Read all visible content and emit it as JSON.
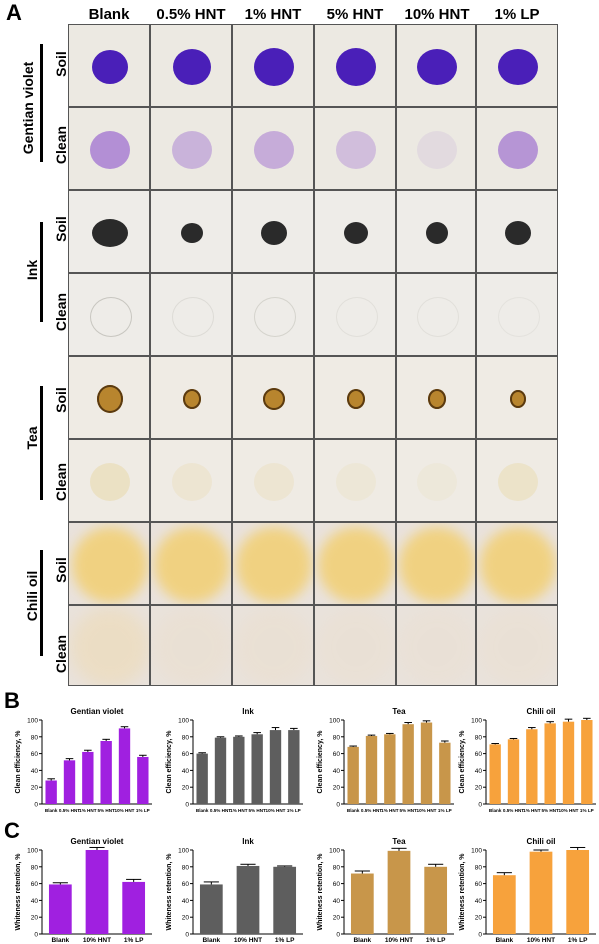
{
  "panel_a": {
    "letter": "A",
    "columns": [
      "Blank",
      "0.5% HNT",
      "1% HNT",
      "5% HNT",
      "10% HNT",
      "1% LP"
    ],
    "groups": [
      {
        "label": "Gentian violet",
        "rows": [
          "Soil",
          "Clean"
        ],
        "soil_color": "#4a1fb8",
        "clean_color": "#a070d0",
        "bg": "#ece9e2",
        "clean_opacity": [
          0.75,
          0.45,
          0.5,
          0.35,
          0.12,
          0.7
        ]
      },
      {
        "label": "Ink",
        "rows": [
          "Soil",
          "Clean"
        ],
        "soil_color": "#2a2a2a",
        "clean_color": "#9a9a90",
        "bg": "#eeece8",
        "clean_opacity": [
          0.45,
          0.2,
          0.3,
          0.15,
          0.15,
          0.12
        ]
      },
      {
        "label": "Tea",
        "rows": [
          "Soil",
          "Clean"
        ],
        "soil_color": "#b8852e",
        "clean_color": "#e6cf8a",
        "bg": "#efebe4",
        "clean_opacity": [
          0.35,
          0.2,
          0.2,
          0.15,
          0.1,
          0.3
        ]
      },
      {
        "label": "Chili oil",
        "rows": [
          "Soil",
          "Clean"
        ],
        "soil_color": "#f2cf72",
        "clean_color": "#efd8a8",
        "bg": "#e9e2dc",
        "clean_opacity": [
          0.45,
          0.15,
          0.15,
          0.12,
          0.1,
          0.12
        ]
      }
    ]
  },
  "panel_b": {
    "letter": "B"
  },
  "panel_c": {
    "letter": "C"
  },
  "chart_data": [
    {
      "panel": "B",
      "type": "bar",
      "title": "Gentian violet",
      "categories": [
        "Blank",
        "0.5% HNT",
        "1% HNT",
        "5% HNT",
        "10% HNT",
        "1% LP"
      ],
      "values": [
        28,
        52,
        62,
        75,
        90,
        56
      ],
      "errors": [
        2,
        2,
        2,
        2,
        2,
        2
      ],
      "ylabel": "Clean efficiency, %",
      "ylim": [
        0,
        100
      ],
      "yticks": [
        0,
        20,
        40,
        60,
        80,
        100
      ],
      "color": "#a020e0"
    },
    {
      "panel": "B",
      "type": "bar",
      "title": "Ink",
      "categories": [
        "Blank",
        "0.5% HNT",
        "1% HNT",
        "5% HNT",
        "10% HNT",
        "1% LP"
      ],
      "values": [
        60,
        79,
        80,
        83,
        88,
        88
      ],
      "errors": [
        1,
        1,
        1,
        2,
        3,
        2
      ],
      "ylabel": "Clean efficiency, %",
      "ylim": [
        0,
        100
      ],
      "yticks": [
        0,
        20,
        40,
        60,
        80,
        100
      ],
      "color": "#5e5e5e"
    },
    {
      "panel": "B",
      "type": "bar",
      "title": "Tea",
      "categories": [
        "Blank",
        "0.5% HNT",
        "1% HNT",
        "5% HNT",
        "10% HNT",
        "1% LP"
      ],
      "values": [
        68,
        81,
        83,
        95,
        97,
        73
      ],
      "errors": [
        1,
        1,
        1,
        2,
        2,
        2
      ],
      "ylabel": "Clean efficiency, %",
      "ylim": [
        0,
        100
      ],
      "yticks": [
        0,
        20,
        40,
        60,
        80,
        100
      ],
      "color": "#c8964a"
    },
    {
      "panel": "B",
      "type": "bar",
      "title": "Chili oil",
      "categories": [
        "Blank",
        "0.5% HNT",
        "1% HNT",
        "5% HNT",
        "10% HNT",
        "1% LP"
      ],
      "values": [
        71,
        77,
        89,
        96,
        98,
        100
      ],
      "errors": [
        1,
        1,
        2,
        2,
        3,
        2
      ],
      "ylabel": "Clean efficiency, %",
      "ylim": [
        0,
        100
      ],
      "yticks": [
        0,
        20,
        40,
        60,
        80,
        100
      ],
      "color": "#f7a23c"
    },
    {
      "panel": "C",
      "type": "bar",
      "title": "Gentian violet",
      "categories": [
        "Blank",
        "10% HNT",
        "1% LP"
      ],
      "values": [
        59,
        100,
        62
      ],
      "errors": [
        2,
        3,
        3
      ],
      "ylabel": "Whiteness retention, %",
      "ylim": [
        0,
        100
      ],
      "yticks": [
        0,
        20,
        40,
        60,
        80,
        100
      ],
      "color": "#a020e0"
    },
    {
      "panel": "C",
      "type": "bar",
      "title": "Ink",
      "categories": [
        "Blank",
        "10% HNT",
        "1% LP"
      ],
      "values": [
        59,
        81,
        80
      ],
      "errors": [
        3,
        2,
        1
      ],
      "ylabel": "Whiteness retention, %",
      "ylim": [
        0,
        100
      ],
      "yticks": [
        0,
        20,
        40,
        60,
        80,
        100
      ],
      "color": "#5e5e5e"
    },
    {
      "panel": "C",
      "type": "bar",
      "title": "Tea",
      "categories": [
        "Blank",
        "10% HNT",
        "1% LP"
      ],
      "values": [
        72,
        99,
        80
      ],
      "errors": [
        3,
        3,
        3
      ],
      "ylabel": "Whiteness retention, %",
      "ylim": [
        0,
        100
      ],
      "yticks": [
        0,
        20,
        40,
        60,
        80,
        100
      ],
      "color": "#c8964a"
    },
    {
      "panel": "C",
      "type": "bar",
      "title": "Chili oil",
      "categories": [
        "Blank",
        "10% HNT",
        "1% LP"
      ],
      "values": [
        70,
        98,
        100
      ],
      "errors": [
        3,
        2,
        3
      ],
      "ylabel": "Whiteness retention, %",
      "ylim": [
        0,
        100
      ],
      "yticks": [
        0,
        20,
        40,
        60,
        80,
        100
      ],
      "color": "#f7a23c"
    }
  ]
}
